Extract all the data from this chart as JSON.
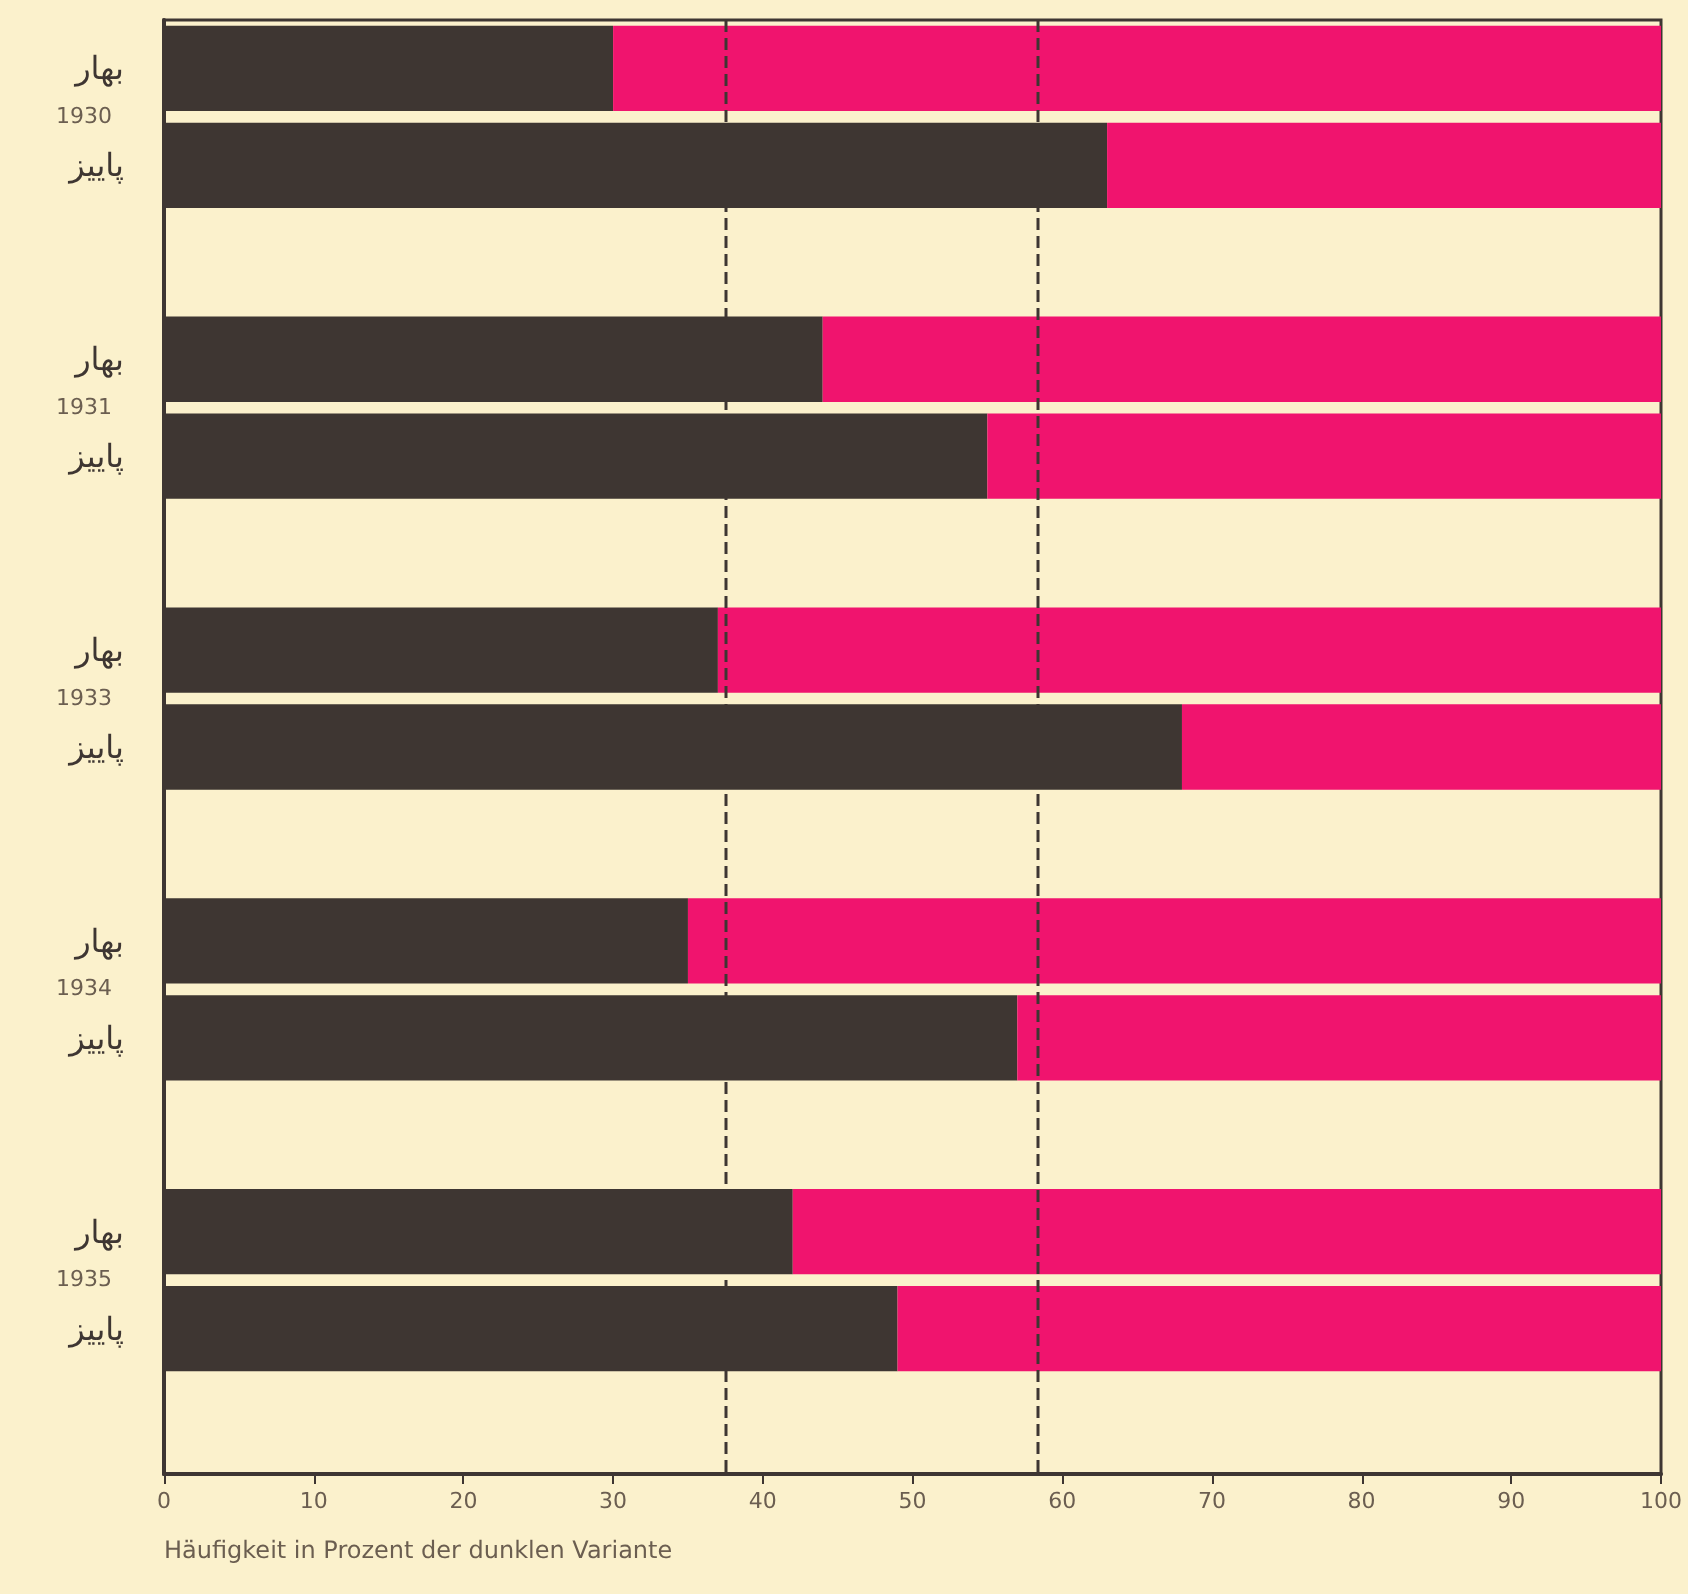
{
  "chart_data": {
    "type": "bar",
    "orientation": "horizontal",
    "stacked": true,
    "xlabel": "Häufigkeit in Prozent der dunklen Variante",
    "categories": [
      "بهار",
      "پاییز",
      null,
      "بهار",
      "پاییز",
      null,
      "بهار",
      "پاییز",
      null,
      "بهار",
      "پاییز",
      null,
      "بهار",
      "پاییز",
      null
    ],
    "series": [
      {
        "color": "#3e3632",
        "values": [
          30,
          63,
          null,
          44,
          55,
          null,
          37,
          68,
          null,
          35,
          57,
          null,
          42,
          49,
          null
        ]
      },
      {
        "color": "#f0146e",
        "values": [
          70,
          37,
          null,
          56,
          45,
          null,
          63,
          32,
          null,
          65,
          43,
          null,
          58,
          51,
          null
        ]
      }
    ],
    "xlim": [
      0,
      100
    ],
    "xticks": [
      0,
      10,
      20,
      30,
      40,
      50,
      60,
      70,
      80,
      90,
      100
    ],
    "ref_lines": [
      {
        "axis": "x",
        "value": 37.5,
        "color": "#3e3632",
        "line_style": "dashed"
      },
      {
        "axis": "x",
        "value": 58.4,
        "color": "#3e3632",
        "line_style": "dashed"
      }
    ],
    "annotations": [
      "1930",
      "1931",
      "1933",
      "1934",
      "1935"
    ],
    "grid": false
  }
}
